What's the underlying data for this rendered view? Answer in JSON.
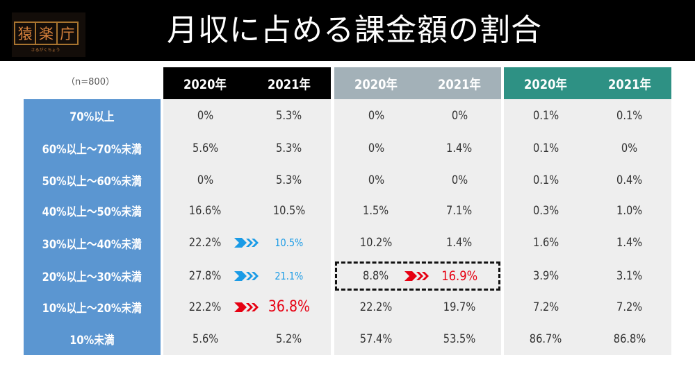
{
  "logo": {
    "chars": [
      "猿",
      "楽",
      "庁"
    ],
    "reading": "さるがくちょう"
  },
  "colors": {
    "label_bg": "#5b96d1",
    "cell_bg": "#eeeeee",
    "text": "#333333",
    "decrease": "#1a9be6",
    "increase": "#e60012"
  },
  "chart_data": {
    "type": "table",
    "title": "月収に占める課金額の割合",
    "note": "（n=800）",
    "groups": [
      {
        "header_color": "#000000",
        "columns": [
          "2020年",
          "2021年"
        ]
      },
      {
        "header_color": "#a3b1b8",
        "columns": [
          "2020年",
          "2021年"
        ]
      },
      {
        "header_color": "#2e9184",
        "columns": [
          "2020年",
          "2021年"
        ]
      }
    ],
    "row_labels": [
      "70%以上",
      "60%以上～70%未満",
      "50%以上～60%未満",
      "40%以上～50%未満",
      "30%以上～40%未満",
      "20%以上～30%未満",
      "10%以上～20%未満",
      "10%未満"
    ],
    "unit": "%",
    "values": [
      [
        0,
        5.3,
        0,
        0,
        0.1,
        0.1
      ],
      [
        5.6,
        5.3,
        0,
        1.4,
        0.1,
        0
      ],
      [
        0,
        5.3,
        0,
        0,
        0.1,
        0.4
      ],
      [
        16.6,
        10.5,
        1.5,
        7.1,
        0.3,
        1.0
      ],
      [
        22.2,
        10.5,
        10.2,
        1.4,
        1.6,
        1.4
      ],
      [
        27.8,
        21.1,
        8.8,
        16.9,
        3.9,
        3.1
      ],
      [
        22.2,
        36.8,
        22.2,
        19.7,
        7.2,
        7.2
      ],
      [
        5.6,
        5.2,
        57.4,
        53.5,
        86.7,
        86.8
      ]
    ],
    "display": [
      [
        "0%",
        "5.3%",
        "0%",
        "0%",
        "0.1%",
        "0.1%"
      ],
      [
        "5.6%",
        "5.3%",
        "0%",
        "1.4%",
        "0.1%",
        "0%"
      ],
      [
        "0%",
        "5.3%",
        "0%",
        "0%",
        "0.1%",
        "0.4%"
      ],
      [
        "16.6%",
        "10.5%",
        "1.5%",
        "7.1%",
        "0.3%",
        "1.0%"
      ],
      [
        "22.2%",
        "10.5%",
        "10.2%",
        "1.4%",
        "1.6%",
        "1.4%"
      ],
      [
        "27.8%",
        "21.1%",
        "8.8%",
        "16.9%",
        "3.9%",
        "3.1%"
      ],
      [
        "22.2%",
        "36.8%",
        "22.2%",
        "19.7%",
        "7.2%",
        "7.2%"
      ],
      [
        "5.6%",
        "5.2%",
        "57.4%",
        "53.5%",
        "86.7%",
        "86.8%"
      ]
    ],
    "highlights": [
      {
        "row": 4,
        "group": 0,
        "direction": "decrease",
        "boxed": false
      },
      {
        "row": 5,
        "group": 0,
        "direction": "decrease",
        "boxed": false
      },
      {
        "row": 6,
        "group": 0,
        "direction": "increase",
        "boxed": false
      },
      {
        "row": 5,
        "group": 1,
        "direction": "increase",
        "boxed": true
      }
    ]
  }
}
